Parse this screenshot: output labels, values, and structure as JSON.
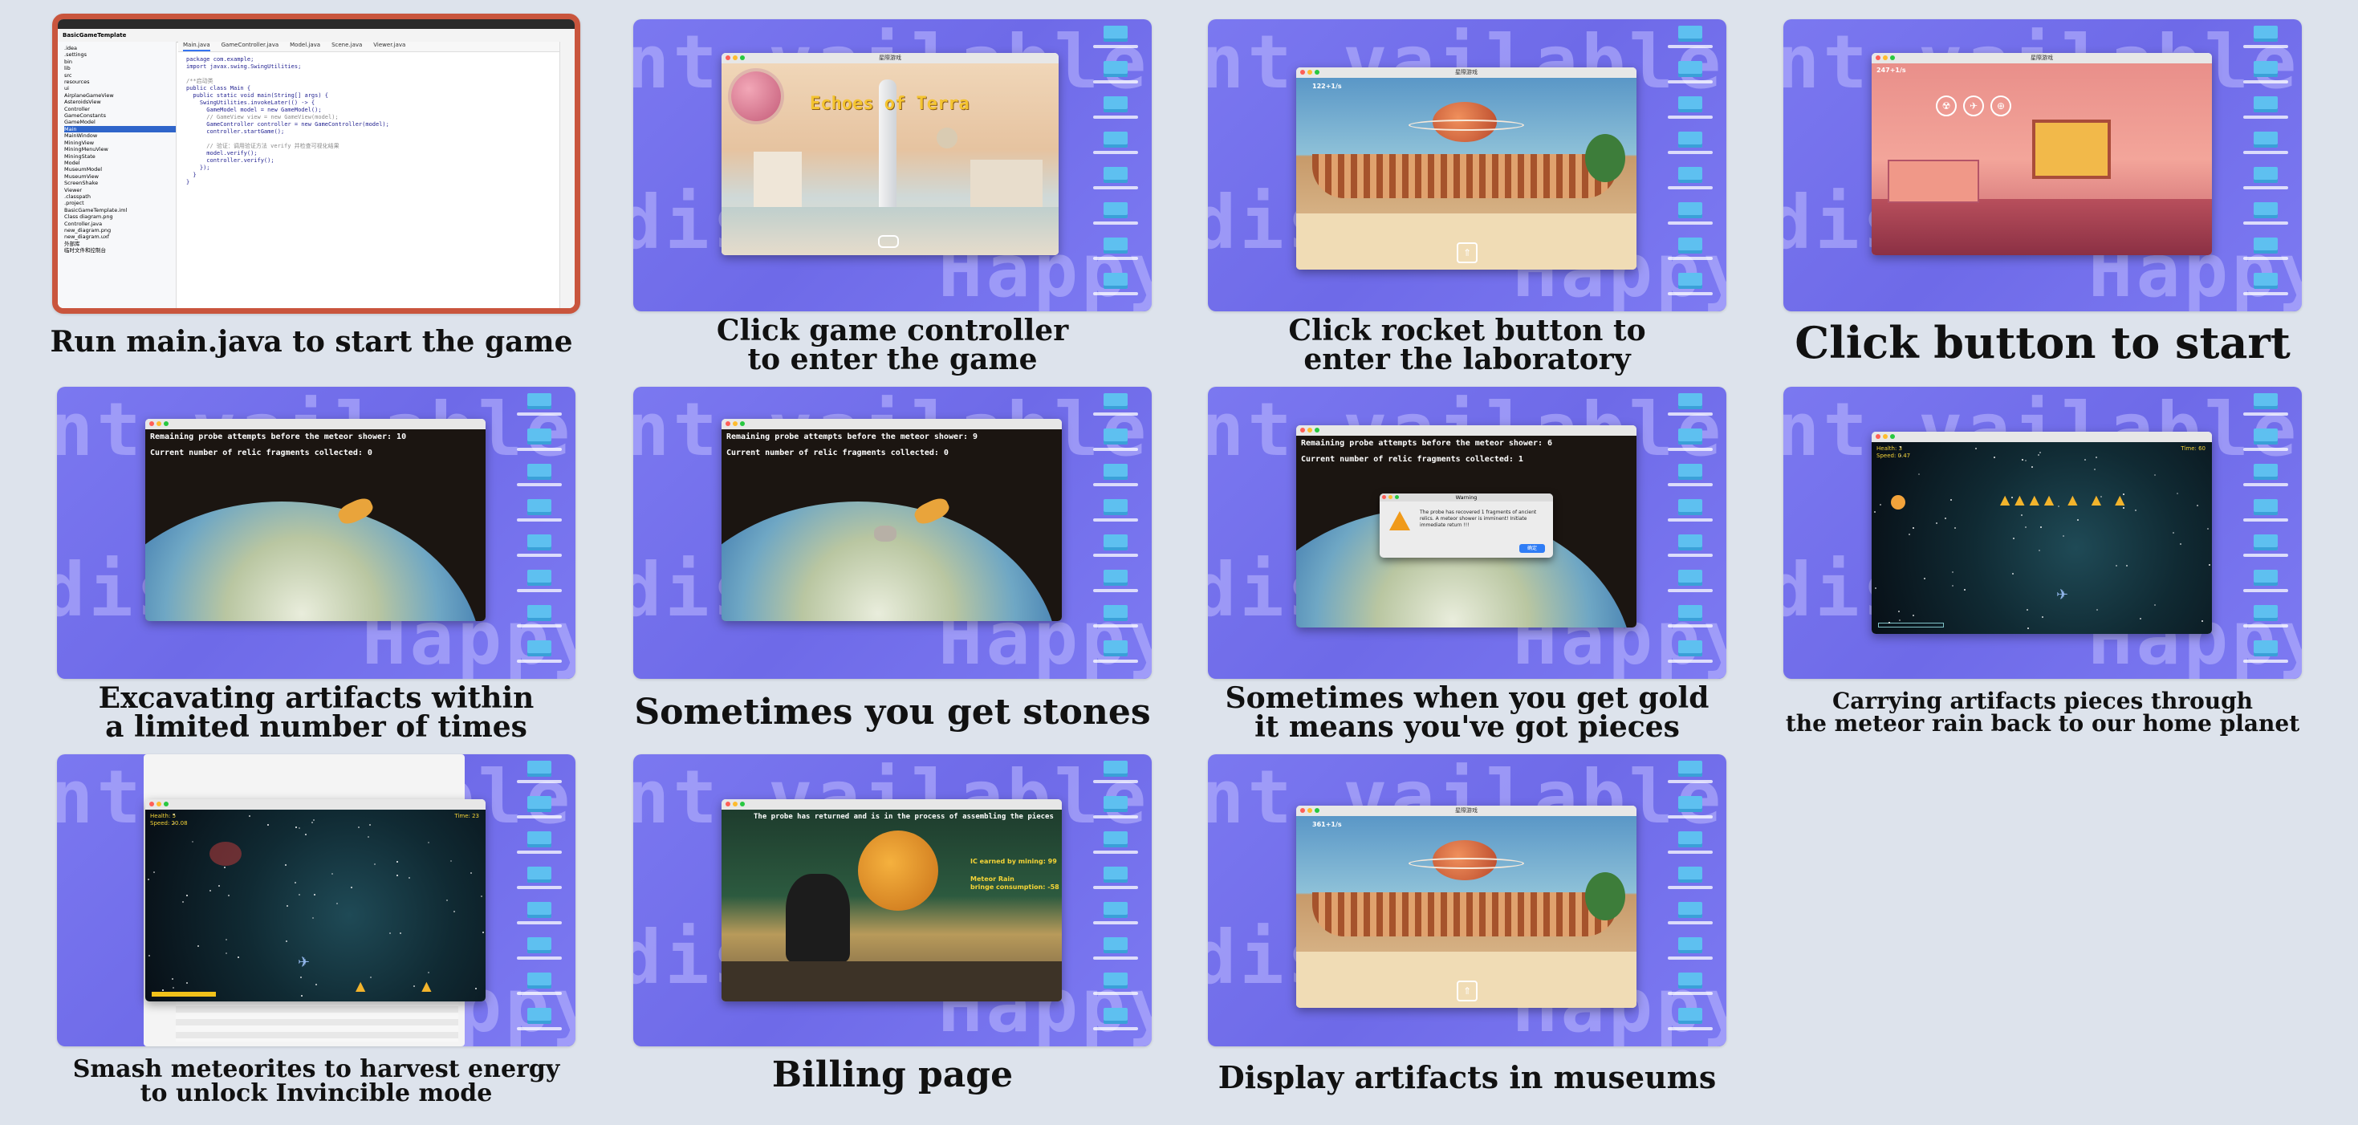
{
  "tiles": [
    {
      "caption": "Run main.java to start the game"
    },
    {
      "caption": "Click game controller\nto enter the game",
      "game_title": "Echoes of Terra",
      "window_title": "星際游戏"
    },
    {
      "caption": "Click rocket button to\nenter the laboratory",
      "window_title": "星際游戏",
      "counter": "122+1/s"
    },
    {
      "caption": "Click button to start",
      "window_title": "星際游戏",
      "counter": "247+1/s"
    },
    {
      "caption": "Excavating artifacts within\na limited number of times",
      "line1": "Remaining probe attempts before the meteor shower: 10",
      "line2": "Current number of relic fragments collected: 0"
    },
    {
      "caption": "Sometimes you get stones",
      "line1": "Remaining probe attempts before the meteor shower: 9",
      "line2": "Current number of relic fragments collected: 0"
    },
    {
      "caption": "Sometimes when you get gold\nit means you've got pieces",
      "line1": "Remaining probe attempts before the meteor shower: 6",
      "line2": "Current number of relic fragments collected: 1",
      "dialog_title": "Warning",
      "dialog_text": "The probe has recovered 1 fragments of ancient relics. A meteor shower is imminent! Initiate immediate return !!!",
      "dialog_button": "确定"
    },
    {
      "caption": "Carrying artifacts pieces through\nthe meteor rain back to our home planet",
      "hud_left": "Health: 3\nSpeed: 0.47",
      "hud_right": "Time: 60"
    },
    {
      "caption": "Smash meteorites to harvest energy\nto unlock Invincible mode",
      "hud_left": "Health: 5\nSpeed: 20.08",
      "hud_right": "Time: 23"
    },
    {
      "caption": "Billing page",
      "line1": "The probe has returned and is in the process of assembling the pieces",
      "stat1": "IC earned by mining: 99",
      "stat2": "Meteor Rain\nbringe consumption: -58"
    },
    {
      "caption": "Display artifacts in museums",
      "window_title": "星際游戏",
      "counter": "361+1/s"
    }
  ],
  "ide": {
    "project": "BasicGameTemplate",
    "tabs": [
      "Main.java",
      "GameController.java",
      "Model.java",
      "Scene.java",
      "Viewer.java"
    ],
    "code": [
      "package com.example;",
      "import javax.swing.SwingUtilities;",
      "",
      "/**启动类",
      "public class Main {",
      "  public static void main(String[] args) {",
      "    SwingUtilities.invokeLater(() -> {",
      "      GameModel model = new GameModel();",
      "      // GameView view = new GameView(model);",
      "      GameController controller = new GameController(model);",
      "      controller.startGame();",
      "",
      "      // 验证：调用验证方法 verify 并检查可视化结果",
      "      model.verify();",
      "      controller.verify();",
      "    });",
      "  }",
      "}"
    ],
    "tree": [
      ".idea",
      ".settings",
      "bin",
      "lib",
      "src",
      "resources",
      "ui",
      "AirplaneGameView",
      "AsteroidsView",
      "Controller",
      "GameConstants",
      "GameModel",
      "Main",
      "MainWindow",
      "MiningView",
      "MiningMenuView",
      "MiningState",
      "Model",
      "MuseumModel",
      "MuseumView",
      "ScreenShake",
      "Viewer",
      ".classpath",
      ".project",
      "BasicGameTemplate.iml",
      "Class diagram.png",
      "Controller.java",
      "new_diagram.png",
      "new_diagram.uxf",
      "外部库",
      "临时文件和控制台"
    ]
  },
  "colors": {
    "accent": "#c9553d",
    "wallpaper": "#7471ee",
    "background": "#dde3ec"
  }
}
